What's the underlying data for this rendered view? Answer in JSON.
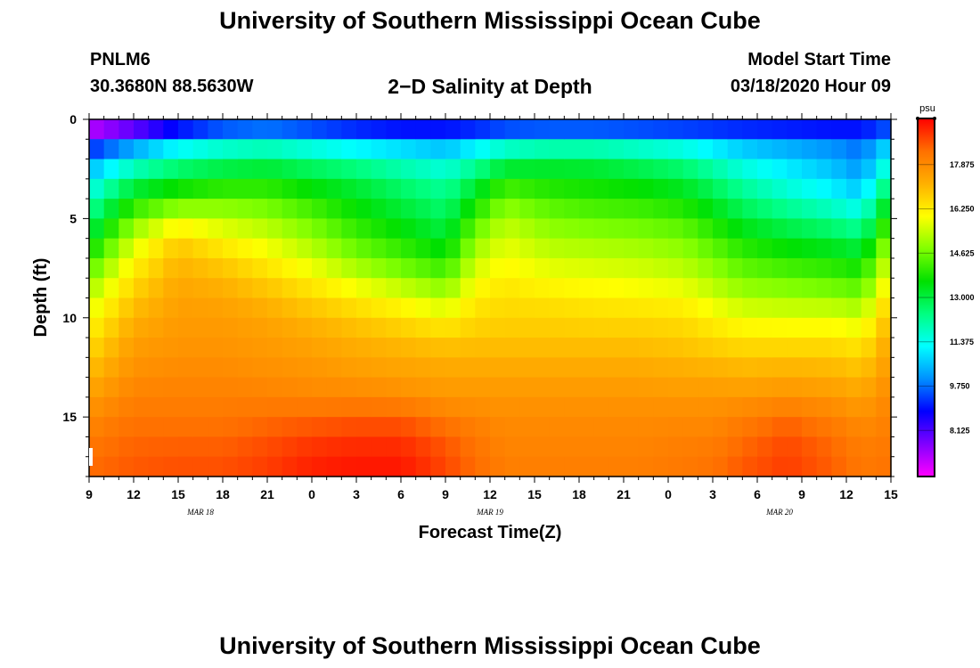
{
  "header": {
    "title_top": "University of Southern Mississippi Ocean Cube",
    "title_bottom": "University of Southern Mississippi Ocean Cube",
    "station_id": "PNLM6",
    "station_coords": "30.3680N 88.5630W",
    "plot_title": "2−D Salinity at Depth",
    "model_start_label": "Model Start Time",
    "model_start_value": "03/18/2020 Hour 09"
  },
  "chart_data": {
    "type": "heatmap",
    "title": "2−D Salinity at Depth",
    "xlabel": "Forecast Time(Z)",
    "ylabel": "Depth (ft)",
    "units": "psu",
    "x_range_hours": [
      0,
      54
    ],
    "x_tick_labels": [
      "9",
      "12",
      "15",
      "18",
      "21",
      "0",
      "3",
      "6",
      "9",
      "12",
      "15",
      "18",
      "21",
      "0",
      "3",
      "6",
      "9",
      "12",
      "15"
    ],
    "date_labels": [
      {
        "text": "MAR 18",
        "hour": 7.5
      },
      {
        "text": "MAR 19",
        "hour": 27
      },
      {
        "text": "MAR 20",
        "hour": 46.5
      }
    ],
    "ylim": [
      0,
      18
    ],
    "y_ticks": [
      0,
      5,
      10,
      15
    ],
    "colorbar": {
      "min": 6.5,
      "max": 19.5,
      "labels": [
        "17.875",
        "16.250",
        "14.625",
        "13.000",
        "11.375",
        "9.750",
        "8.125"
      ],
      "colors": [
        "#ff00ff",
        "#8000ff",
        "#0000ff",
        "#0090ff",
        "#00ffff",
        "#00ff80",
        "#00e000",
        "#80ff00",
        "#ffff00",
        "#ffb000",
        "#ff7000",
        "#ff0000"
      ]
    },
    "salinity_profiles": {
      "depths_ft": [
        0,
        0.5,
        1,
        2,
        3,
        4,
        5,
        6,
        7,
        8,
        9,
        10,
        11,
        12,
        13,
        14,
        15,
        16,
        17,
        18
      ],
      "hours": [
        0,
        3,
        6,
        9,
        12,
        15,
        18,
        21,
        24,
        26,
        28,
        31,
        34,
        37,
        40,
        42,
        44,
        47,
        50,
        52,
        54
      ],
      "values": [
        [
          6.8,
          7.2,
          8.5,
          10.0,
          11.0,
          11.8,
          12.5,
          13.2,
          14.0,
          14.8,
          15.4,
          15.9,
          16.3,
          16.7,
          17.1,
          17.5,
          17.8,
          18.1,
          18.3,
          18.4
        ],
        [
          7.3,
          8.0,
          9.5,
          11.2,
          12.6,
          13.6,
          14.6,
          15.4,
          16.0,
          16.4,
          16.8,
          17.1,
          17.4,
          17.6,
          17.8,
          18.0,
          18.2,
          18.4,
          18.5,
          18.6
        ],
        [
          8.5,
          9.0,
          10.5,
          12.0,
          13.2,
          14.2,
          15.6,
          16.6,
          17.0,
          17.2,
          17.4,
          17.5,
          17.6,
          17.7,
          17.9,
          18.0,
          18.2,
          18.4,
          18.6,
          18.7
        ],
        [
          8.8,
          9.6,
          11.0,
          12.4,
          13.5,
          14.5,
          15.3,
          16.0,
          16.6,
          17.0,
          17.3,
          17.5,
          17.6,
          17.7,
          17.9,
          18.0,
          18.2,
          18.4,
          18.6,
          18.7
        ],
        [
          8.8,
          9.8,
          11.2,
          12.6,
          13.6,
          14.4,
          15.0,
          15.6,
          16.1,
          16.6,
          17.0,
          17.3,
          17.5,
          17.6,
          17.8,
          18.0,
          18.3,
          18.6,
          18.8,
          18.9
        ],
        [
          8.8,
          9.5,
          10.8,
          12.3,
          13.2,
          13.9,
          14.5,
          15.0,
          15.5,
          16.1,
          16.6,
          17.0,
          17.3,
          17.5,
          17.7,
          17.9,
          18.4,
          18.8,
          19.1,
          19.2
        ],
        [
          8.7,
          9.2,
          10.4,
          12.0,
          12.9,
          13.4,
          13.8,
          14.3,
          14.8,
          15.5,
          16.2,
          16.7,
          17.1,
          17.3,
          17.6,
          17.9,
          18.5,
          18.9,
          19.2,
          19.3
        ],
        [
          8.7,
          9.0,
          10.2,
          11.6,
          12.4,
          12.9,
          13.3,
          13.8,
          14.3,
          15.0,
          15.8,
          16.4,
          16.9,
          17.2,
          17.5,
          17.8,
          18.5,
          18.9,
          19.2,
          19.3
        ],
        [
          8.7,
          9.0,
          10.0,
          11.2,
          12.0,
          12.4,
          12.8,
          13.2,
          13.8,
          14.5,
          15.3,
          16.0,
          16.7,
          17.1,
          17.4,
          17.6,
          18.1,
          18.5,
          18.7,
          18.8
        ],
        [
          8.8,
          9.2,
          10.5,
          11.8,
          12.8,
          13.5,
          14.2,
          14.8,
          15.3,
          15.8,
          16.2,
          16.5,
          16.8,
          17.1,
          17.4,
          17.6,
          17.9,
          18.2,
          18.3,
          18.4
        ],
        [
          8.9,
          9.5,
          11.0,
          12.5,
          13.8,
          14.6,
          15.2,
          15.6,
          15.9,
          16.2,
          16.4,
          16.6,
          16.8,
          17.1,
          17.4,
          17.6,
          17.8,
          17.9,
          18.0,
          18.1
        ],
        [
          8.9,
          9.6,
          11.2,
          12.8,
          13.6,
          14.2,
          14.7,
          15.1,
          15.5,
          15.9,
          16.3,
          16.6,
          16.8,
          17.1,
          17.4,
          17.6,
          17.8,
          17.9,
          18.0,
          18.1
        ],
        [
          8.9,
          9.6,
          11.2,
          12.8,
          13.5,
          14.0,
          14.5,
          15.0,
          15.4,
          15.8,
          16.2,
          16.5,
          16.8,
          17.1,
          17.4,
          17.6,
          17.8,
          17.9,
          18.0,
          18.1
        ],
        [
          8.9,
          9.5,
          11.0,
          12.5,
          13.3,
          13.9,
          14.4,
          14.9,
          15.3,
          15.7,
          16.1,
          16.5,
          16.8,
          17.1,
          17.4,
          17.6,
          17.8,
          17.9,
          18.0,
          18.1
        ],
        [
          8.9,
          9.4,
          10.8,
          12.2,
          13.0,
          13.6,
          14.2,
          14.7,
          15.1,
          15.5,
          16.0,
          16.4,
          16.7,
          17.0,
          17.3,
          17.6,
          17.8,
          18.0,
          18.1,
          18.2
        ],
        [
          8.8,
          9.3,
          10.5,
          11.7,
          12.5,
          13.1,
          13.7,
          14.2,
          14.7,
          15.1,
          15.6,
          16.1,
          16.5,
          16.9,
          17.3,
          17.6,
          17.8,
          18.0,
          18.2,
          18.3
        ],
        [
          8.8,
          9.2,
          10.2,
          11.2,
          11.9,
          12.5,
          13.1,
          13.7,
          14.2,
          14.7,
          15.2,
          15.8,
          16.3,
          16.8,
          17.2,
          17.6,
          18.0,
          18.3,
          18.5,
          18.6
        ],
        [
          8.8,
          9.1,
          10.0,
          10.8,
          11.3,
          11.9,
          12.6,
          13.3,
          13.9,
          14.5,
          15.1,
          15.7,
          16.3,
          16.8,
          17.3,
          17.7,
          18.3,
          18.7,
          18.8,
          18.9
        ],
        [
          8.7,
          9.0,
          9.8,
          10.4,
          10.8,
          11.4,
          12.2,
          13.0,
          13.7,
          14.3,
          15.0,
          15.7,
          16.3,
          16.8,
          17.2,
          17.6,
          18.0,
          18.3,
          18.5,
          18.5
        ],
        [
          8.7,
          9.0,
          9.6,
          10.0,
          10.3,
          11.0,
          11.8,
          12.7,
          13.4,
          14.1,
          14.8,
          15.5,
          16.1,
          16.6,
          17.0,
          17.4,
          17.7,
          18.0,
          18.1,
          18.2
        ],
        [
          8.8,
          9.6,
          10.6,
          11.4,
          12.4,
          13.3,
          14.2,
          15.0,
          15.6,
          16.1,
          16.6,
          17.0,
          17.3,
          17.5,
          17.7,
          17.9,
          18.0,
          18.1,
          18.2,
          18.3
        ]
      ]
    }
  }
}
